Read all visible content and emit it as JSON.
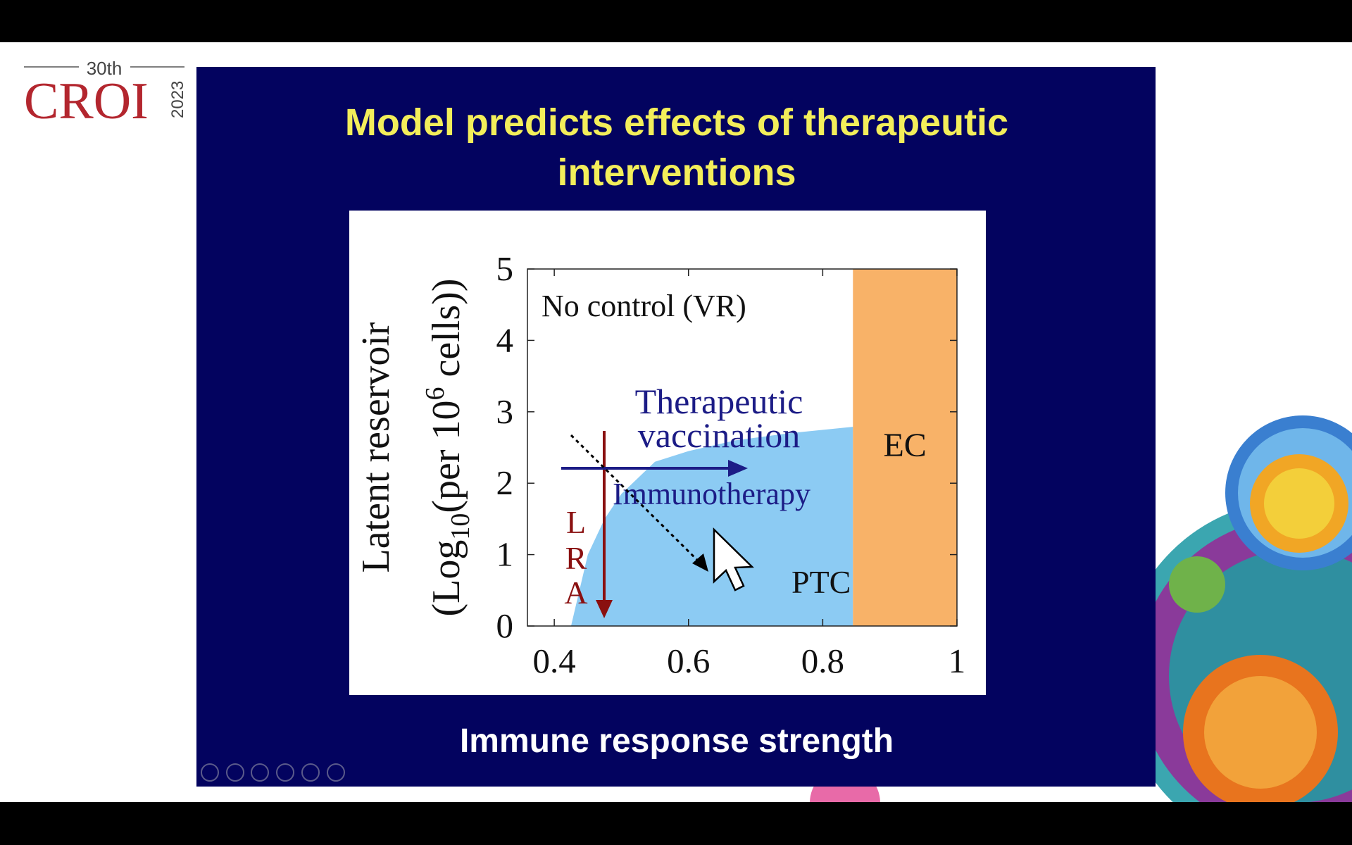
{
  "header": {
    "edition": "30th",
    "logo": "CROI",
    "year": "2023"
  },
  "slide": {
    "title": [
      "Model predicts effects of therapeutic",
      "interventions"
    ]
  },
  "chart_data": {
    "type": "area",
    "y_label": [
      "Latent reservoir",
      [
        "(Log",
        "10",
        "(per 10",
        "6",
        " cells))"
      ]
    ],
    "x_label": "Immune response strength",
    "xlim": [
      0.36,
      1.0
    ],
    "ylim": [
      0,
      5
    ],
    "xticks": [
      0.4,
      0.6,
      0.8,
      1
    ],
    "yticks": [
      0,
      1,
      2,
      3,
      4,
      5
    ],
    "series": [
      {
        "name": "PTC",
        "color": "#8ccbf3",
        "x": [
          0.425,
          0.45,
          0.475,
          0.5,
          0.55,
          0.6,
          0.67,
          0.75,
          0.845
        ],
        "values": [
          0,
          1.0,
          1.5,
          1.85,
          2.3,
          2.45,
          2.6,
          2.7,
          2.79
        ]
      }
    ],
    "regions": [
      {
        "name": "EC",
        "color": "#f8b268",
        "x": [
          0.845,
          1.0
        ]
      }
    ],
    "annotations": {
      "no_control": "No control (VR)",
      "vaccination": [
        "Therapeutic",
        "vaccination"
      ],
      "immunotherapy": "Immunotherapy",
      "lra": [
        "L",
        "R",
        "A"
      ]
    }
  }
}
